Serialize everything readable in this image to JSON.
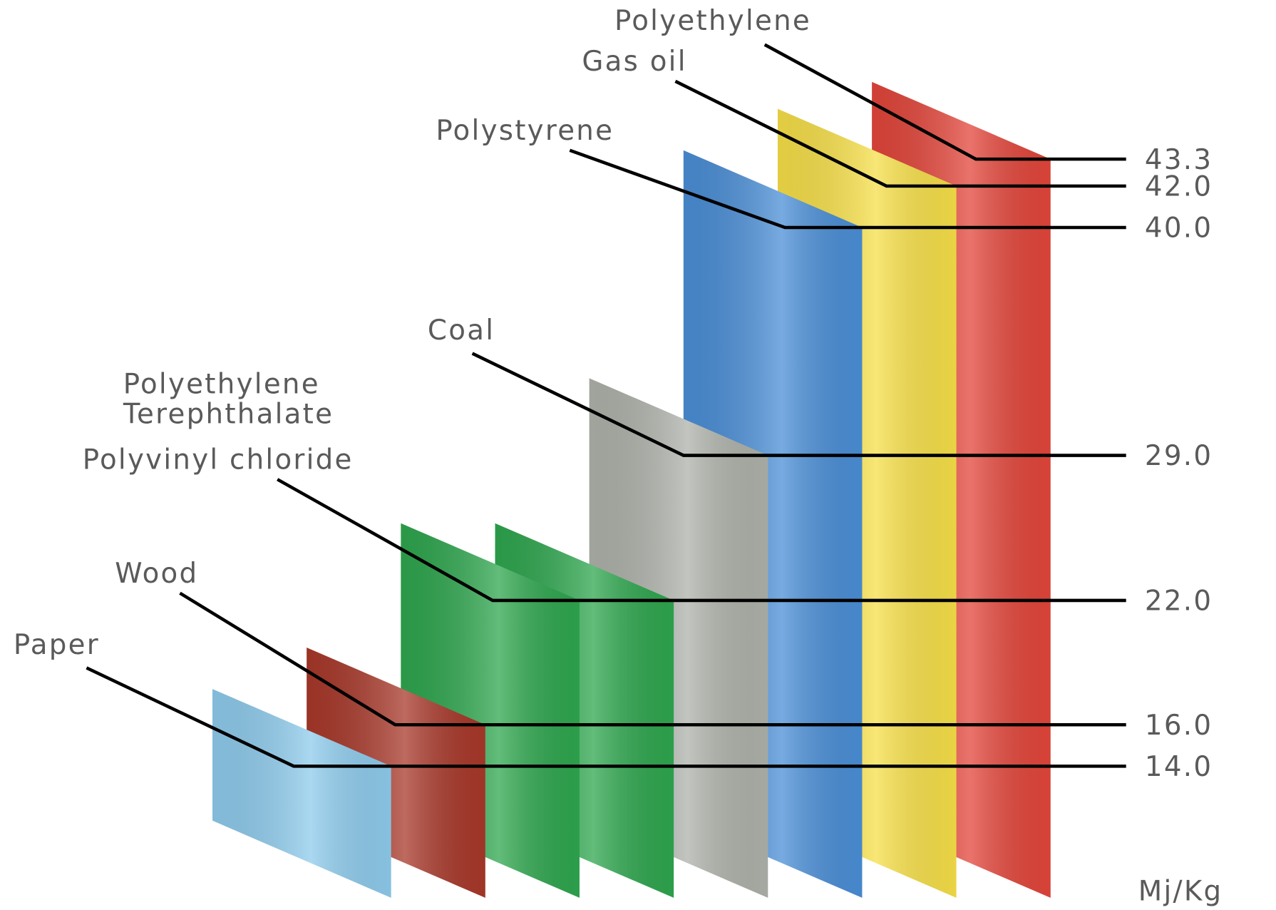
{
  "chart_data": {
    "type": "panel3d",
    "categories": [
      "Paper",
      "Wood",
      "Polyvinyl chloride",
      "Polyethylene Terephthalate",
      "Coal",
      "Polystyrene",
      "Gas oil",
      "Polyethylene"
    ],
    "values": [
      14.0,
      16.0,
      22.0,
      22.0,
      29.0,
      40.0,
      42.0,
      43.3
    ],
    "value_labels": [
      "14.0",
      "16.0",
      "22.0",
      null,
      "29.0",
      "40.0",
      "42.0",
      "43.3"
    ],
    "colors": [
      "#8ecbec",
      "#a8382a",
      "#2ea64e",
      "#2ea64e",
      "#aeb2aa",
      "#4a8ed6",
      "#f6df48",
      "#e2453a"
    ],
    "unit": "Mj/Kg"
  }
}
